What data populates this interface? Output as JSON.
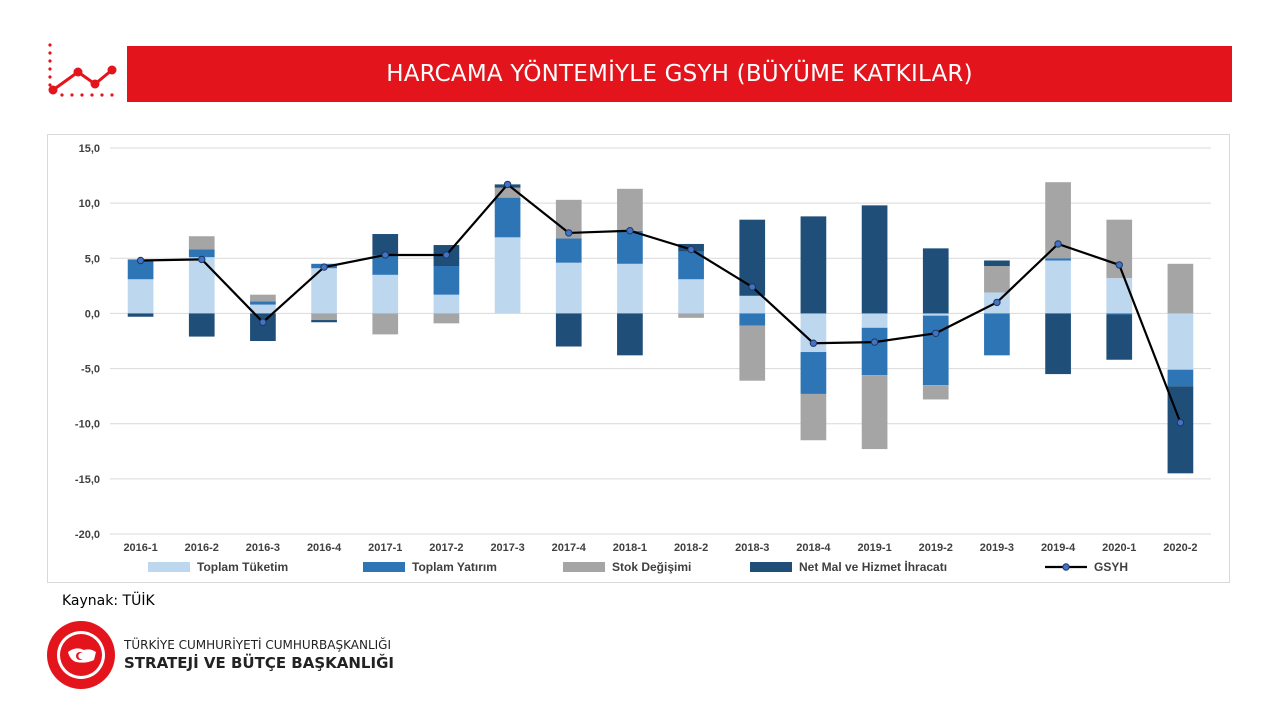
{
  "header": {
    "title": "HARCAMA YÖNTEMİYLE GSYH (BÜYÜME KATKILAR)"
  },
  "footer": {
    "source": "Kaynak: TÜİK",
    "org_line1": "TÜRKİYE CUMHURİYETİ CUMHURBAŞKANLIĞI",
    "org_line2": "STRATEJİ VE BÜTÇE BAŞKANLIĞI",
    "seal_text": "T.C. CUMHURBAŞKANLIĞI STRATEJİ VE BÜTÇE BAŞKANLIĞI"
  },
  "colors": {
    "brand_red": "#e3141b",
    "consumption": "#bdd7ee",
    "investment": "#2e75b6",
    "stock": "#a5a5a5",
    "net_exports": "#1f4e79",
    "gdp_line": "#000000"
  },
  "chart_data": {
    "type": "bar",
    "stacked": true,
    "categories": [
      "2016-1",
      "2016-2",
      "2016-3",
      "2016-4",
      "2017-1",
      "2017-2",
      "2017-3",
      "2017-4",
      "2018-1",
      "2018-2",
      "2018-3",
      "2018-4",
      "2019-1",
      "2019-2",
      "2019-3",
      "2019-4",
      "2020-1",
      "2020-2"
    ],
    "ylim": [
      -20,
      15
    ],
    "yticks": [
      "15,0",
      "10,0",
      "5,0",
      "0,0",
      "-5,0",
      "-10,0",
      "-15,0",
      "-20,0"
    ],
    "ytick_values": [
      15,
      10,
      5,
      0,
      -5,
      -10,
      -15,
      -20
    ],
    "grid": true,
    "legend_position": "bottom",
    "series": [
      {
        "name": "Toplam Tüketim",
        "color": "#bdd7ee",
        "values": [
          3.1,
          5.1,
          0.8,
          4.1,
          3.5,
          1.7,
          6.9,
          4.6,
          4.5,
          3.1,
          1.6,
          -3.5,
          -1.3,
          -0.2,
          1.9,
          4.8,
          3.2,
          -5.1
        ]
      },
      {
        "name": "Toplam Yatırım",
        "color": "#2e75b6",
        "values": [
          1.8,
          0.7,
          0.3,
          0.4,
          1.8,
          2.6,
          3.6,
          2.2,
          3.0,
          2.5,
          -1.1,
          -3.8,
          -4.3,
          -6.3,
          -3.8,
          0.2,
          -0.1,
          -1.5
        ]
      },
      {
        "name": "Stok Değişimi",
        "color": "#a5a5a5",
        "values": [
          0.0,
          1.2,
          0.6,
          -0.6,
          -1.9,
          -0.9,
          0.9,
          3.5,
          3.8,
          -0.4,
          -5.0,
          -4.2,
          -6.7,
          -1.3,
          2.4,
          6.9,
          5.3,
          4.5
        ]
      },
      {
        "name": "Net Mal ve Hizmet İhracatı",
        "color": "#1f4e79",
        "values": [
          -0.3,
          -2.1,
          -2.5,
          -0.2,
          1.9,
          1.9,
          0.3,
          -3.0,
          -3.8,
          0.7,
          6.9,
          8.8,
          9.8,
          5.9,
          0.5,
          -5.5,
          -4.1,
          -7.9
        ]
      }
    ],
    "line_series": {
      "name": "GSYH",
      "color": "#000000",
      "values": [
        4.8,
        4.9,
        -0.8,
        4.2,
        5.3,
        5.3,
        11.7,
        7.3,
        7.5,
        5.8,
        2.4,
        -2.7,
        -2.6,
        -1.8,
        1.0,
        6.3,
        4.4,
        -9.9
      ]
    }
  }
}
